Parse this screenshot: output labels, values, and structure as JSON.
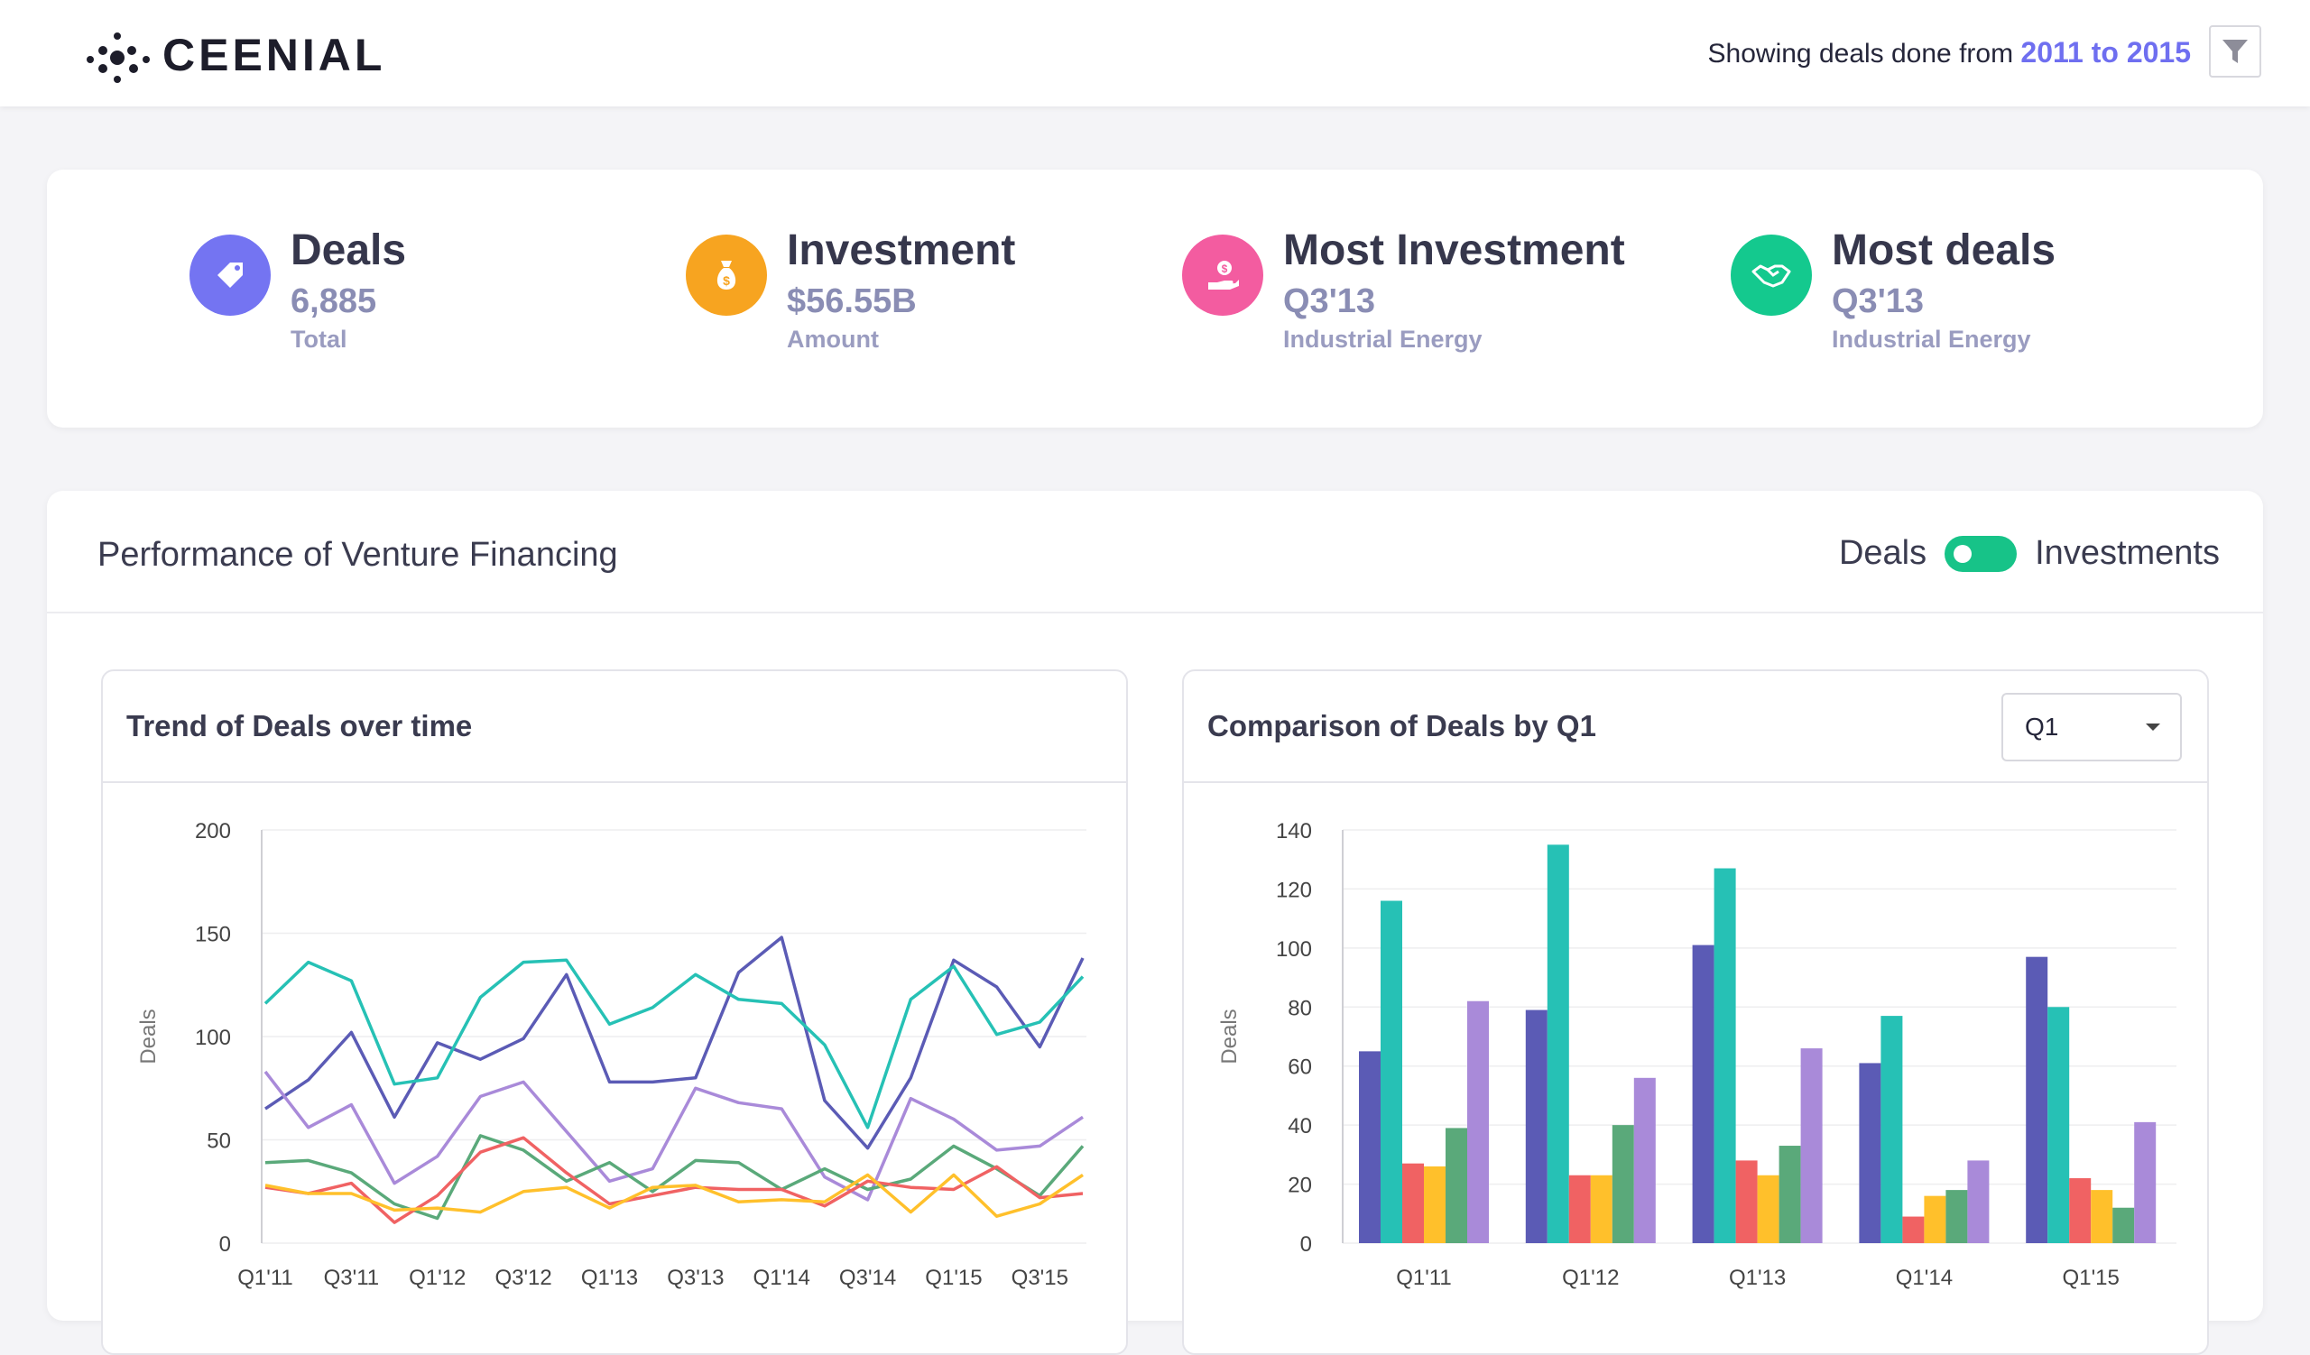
{
  "header": {
    "logo_text": "CEENIAL",
    "range_prefix": "Showing deals done from ",
    "range_years": "2011 to 2015",
    "filter_icon": "filter-icon"
  },
  "kpis": [
    {
      "title": "Deals",
      "value": "6,885",
      "sub": "Total",
      "icon": "price-tag-icon",
      "color": "#7474f2"
    },
    {
      "title": "Investment",
      "value": "$56.55B",
      "sub": "Amount",
      "icon": "money-bag-icon",
      "color": "#f7a420"
    },
    {
      "title": "Most Investment",
      "value": "Q3'13",
      "sub": "Industrial Energy",
      "icon": "hand-coin-icon",
      "color": "#f35ca0"
    },
    {
      "title": "Most deals",
      "value": "Q3'13",
      "sub": "Industrial Energy",
      "icon": "handshake-icon",
      "color": "#14c98e"
    }
  ],
  "panel": {
    "title": "Performance of Venture Financing",
    "toggle_left": "Deals",
    "toggle_right": "Investments"
  },
  "trend_card": {
    "title": "Trend of Deals over time"
  },
  "comparison_card": {
    "title": "Comparison of Deals by Q1",
    "select_value": "Q1"
  },
  "chart_data": [
    {
      "type": "line",
      "ylabel": "Deals",
      "ylim": [
        0,
        200
      ],
      "yticks": [
        0,
        50,
        100,
        150,
        200
      ],
      "x": [
        "Q1'11",
        "Q2'11",
        "Q3'11",
        "Q4'11",
        "Q1'12",
        "Q2'12",
        "Q3'12",
        "Q4'12",
        "Q1'13",
        "Q2'13",
        "Q3'13",
        "Q4'13",
        "Q1'14",
        "Q2'14",
        "Q3'14",
        "Q4'14",
        "Q1'15",
        "Q2'15",
        "Q3'15",
        "Q4'15"
      ],
      "xtick_labels": [
        "Q1'11",
        "Q3'11",
        "Q1'12",
        "Q3'12",
        "Q1'13",
        "Q3'13",
        "Q1'14",
        "Q3'14",
        "Q1'15",
        "Q3'15"
      ],
      "grid": true,
      "series": [
        {
          "color": "#5b5bb5",
          "values": [
            65,
            79,
            102,
            61,
            97,
            89,
            99,
            130,
            78,
            78,
            80,
            131,
            148,
            69,
            46,
            80,
            137,
            124,
            95,
            138
          ]
        },
        {
          "color": "#26c1b5",
          "values": [
            116,
            136,
            127,
            77,
            80,
            119,
            136,
            137,
            106,
            114,
            130,
            118,
            116,
            96,
            56,
            118,
            134,
            101,
            107,
            129
          ]
        },
        {
          "color": "#a98ad9",
          "values": [
            83,
            56,
            67,
            29,
            42,
            71,
            78,
            54,
            30,
            36,
            75,
            68,
            65,
            32,
            21,
            70,
            60,
            45,
            47,
            61
          ]
        },
        {
          "color": "#5aa97a",
          "values": [
            39,
            40,
            34,
            19,
            12,
            52,
            45,
            30,
            39,
            25,
            40,
            39,
            26,
            36,
            26,
            31,
            47,
            36,
            23,
            47
          ]
        },
        {
          "color": "#f06263",
          "values": [
            27,
            24,
            29,
            10,
            23,
            44,
            51,
            34,
            19,
            23,
            27,
            26,
            26,
            18,
            30,
            27,
            26,
            37,
            22,
            24
          ]
        },
        {
          "color": "#ffc02b",
          "values": [
            28,
            24,
            24,
            16,
            17,
            15,
            25,
            27,
            17,
            27,
            28,
            20,
            21,
            20,
            33,
            15,
            33,
            13,
            19,
            33
          ]
        }
      ]
    },
    {
      "type": "bar",
      "ylabel": "Deals",
      "ylim": [
        0,
        140
      ],
      "yticks": [
        0,
        20,
        40,
        60,
        80,
        100,
        120,
        140
      ],
      "categories": [
        "Q1'11",
        "Q1'12",
        "Q1'13",
        "Q1'14",
        "Q1'15"
      ],
      "grid": true,
      "series": [
        {
          "color": "#5b5bb5",
          "values": [
            65,
            79,
            101,
            61,
            97
          ]
        },
        {
          "color": "#26c1b5",
          "values": [
            116,
            135,
            127,
            77,
            80
          ]
        },
        {
          "color": "#f06263",
          "values": [
            27,
            23,
            28,
            9,
            22
          ]
        },
        {
          "color": "#ffc02b",
          "values": [
            26,
            23,
            23,
            16,
            18
          ]
        },
        {
          "color": "#5aa97a",
          "values": [
            39,
            40,
            33,
            18,
            12
          ]
        },
        {
          "color": "#a98ad9",
          "values": [
            82,
            56,
            66,
            28,
            41
          ]
        }
      ]
    }
  ]
}
